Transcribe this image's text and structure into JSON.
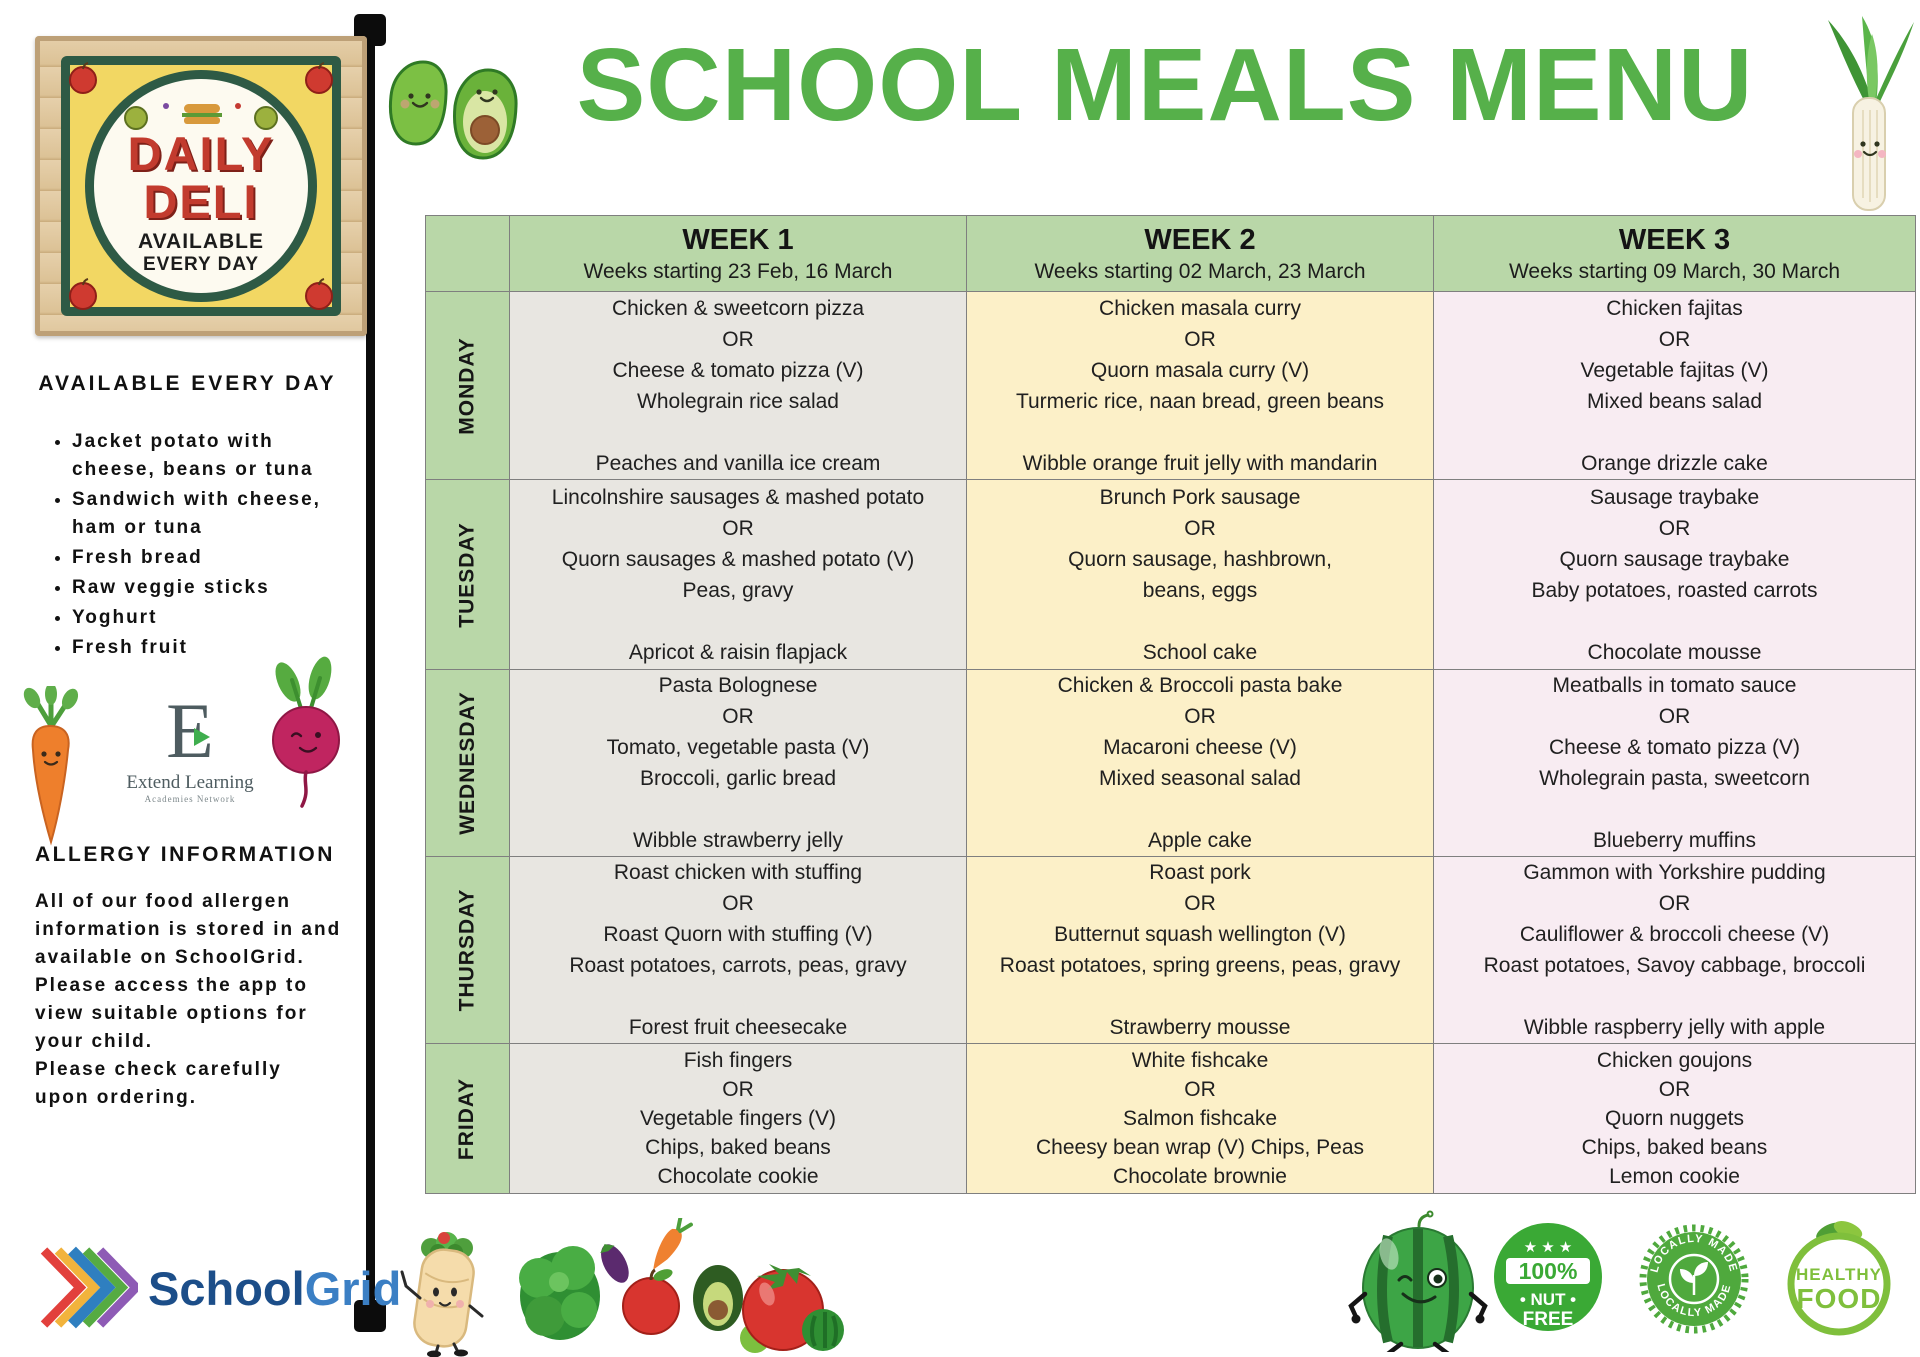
{
  "page_title": "SCHOOL MEALS MENU",
  "colors": {
    "title_green": "#56b04a",
    "table_header_green": "#b9d7a8",
    "week1_bg": "#e8e6e1",
    "week2_bg": "#fcf0c8",
    "week3_bg": "#f8ecf2",
    "deli_red": "#c23b2e",
    "schoolgrid_dark_blue": "#1c4e89",
    "schoolgrid_light_blue": "#3b7fc4",
    "badge_green": "#3aa935",
    "healthy_green": "#7fbf3c"
  },
  "icons": {
    "stars": "★ ★ ★",
    "list": [
      "daily-deli-sign",
      "avocado-pair-icon",
      "leek-icon",
      "carrot-icon",
      "beetroot-icon",
      "extend-learning-logo",
      "schoolgrid-logo",
      "wrap-character-icon",
      "vegetables-icon",
      "watermelon-character-icon",
      "nut-free-badge",
      "locally-made-badge",
      "healthy-food-badge"
    ]
  },
  "sidebar": {
    "deli_sign": {
      "title_line1": "DAILY",
      "title_line2": "DELI",
      "subtitle_line1": "AVAILABLE",
      "subtitle_line2": "EVERY DAY"
    },
    "available_heading": "AVAILABLE EVERY DAY",
    "available_items": [
      "Jacket potato with cheese, beans or tuna",
      "Sandwich with cheese, ham or tuna",
      "Fresh bread",
      "Raw veggie sticks",
      "Yoghurt",
      "Fresh fruit"
    ],
    "extend_logo": {
      "initial": "E",
      "name": "Extend Learning",
      "subname": "Academies Network"
    },
    "allergy_heading": "ALLERGY INFORMATION",
    "allergy_paragraphs": [
      "All of our food allergen information is stored in and available on SchoolGrid.",
      "Please access the app to view suitable options for your child.",
      "Please check carefully upon ordering."
    ],
    "schoolgrid_logo": {
      "word1": "School",
      "word2": "Grid"
    }
  },
  "menu_table": {
    "header_bg": "#b9d7a8",
    "week_colors": [
      "#e8e6e1",
      "#fcf0c8",
      "#f8ecf2"
    ],
    "week_headers": [
      {
        "label": "WEEK 1",
        "subtitle": "Weeks starting 23 Feb, 16 March"
      },
      {
        "label": "WEEK 2",
        "subtitle": "Weeks starting 02 March, 23 March"
      },
      {
        "label": "WEEK 3",
        "subtitle": "Weeks starting 09 March, 30 March"
      }
    ],
    "days": [
      {
        "label": "MONDAY",
        "cells": [
          [
            "Chicken & sweetcorn pizza",
            "OR",
            "Cheese & tomato pizza (V)",
            "Wholegrain rice salad",
            "",
            "Peaches and vanilla ice cream"
          ],
          [
            "Chicken masala curry",
            "OR",
            "Quorn masala curry (V)",
            "Turmeric rice, naan bread, green beans",
            "",
            "Wibble orange fruit jelly with mandarin"
          ],
          [
            "Chicken fajitas",
            "OR",
            "Vegetable fajitas (V)",
            "Mixed beans salad",
            "",
            "Orange drizzle cake"
          ]
        ]
      },
      {
        "label": "TUESDAY",
        "cells": [
          [
            "Lincolnshire sausages & mashed potato",
            "OR",
            "Quorn sausages & mashed potato (V)",
            "Peas, gravy",
            "",
            "Apricot & raisin flapjack"
          ],
          [
            "Brunch Pork sausage",
            "OR",
            "Quorn sausage, hashbrown,",
            "beans, eggs",
            "",
            "School cake"
          ],
          [
            "Sausage traybake",
            "OR",
            "Quorn sausage traybake",
            "Baby potatoes, roasted carrots",
            "",
            "Chocolate mousse"
          ]
        ]
      },
      {
        "label": "WEDNESDAY",
        "cells": [
          [
            "Pasta Bolognese",
            "OR",
            "Tomato, vegetable pasta (V)",
            "Broccoli, garlic bread",
            "",
            "Wibble strawberry jelly"
          ],
          [
            "Chicken & Broccoli pasta bake",
            "OR",
            "Macaroni cheese (V)",
            "Mixed seasonal salad",
            "",
            "Apple cake"
          ],
          [
            "Meatballs in tomato sauce",
            "OR",
            "Cheese & tomato pizza (V)",
            "Wholegrain pasta, sweetcorn",
            "",
            "Blueberry muffins"
          ]
        ]
      },
      {
        "label": "THURSDAY",
        "cells": [
          [
            "Roast chicken with stuffing",
            "OR",
            "Roast Quorn with stuffing (V)",
            "Roast potatoes, carrots, peas, gravy",
            "",
            "Forest fruit cheesecake"
          ],
          [
            "Roast pork",
            "OR",
            "Butternut squash wellington (V)",
            "Roast potatoes, spring greens, peas, gravy",
            "",
            "Strawberry mousse"
          ],
          [
            "Gammon with Yorkshire pudding",
            "OR",
            "Cauliflower & broccoli cheese (V)",
            "Roast potatoes, Savoy cabbage, broccoli",
            "",
            "Wibble raspberry jelly with apple"
          ]
        ]
      },
      {
        "label": "FRIDAY",
        "cells": [
          [
            "Fish fingers",
            "OR",
            "Vegetable fingers (V)",
            "Chips, baked beans",
            "Chocolate cookie"
          ],
          [
            "White fishcake",
            "OR",
            "Salmon fishcake",
            "Cheesy bean wrap (V) Chips, Peas",
            "Chocolate brownie"
          ],
          [
            "Chicken goujons",
            "OR",
            "Quorn nuggets",
            "Chips, baked beans",
            "Lemon cookie"
          ]
        ]
      }
    ]
  },
  "footer_badges": {
    "nut_free": {
      "percent": "100%",
      "line1": "• NUT •",
      "line2": "FREE"
    },
    "locally_made": {
      "text": "LOCALLY MADE"
    },
    "healthy_food": {
      "line1": "HEALTHY",
      "line2": "FOOD"
    }
  }
}
